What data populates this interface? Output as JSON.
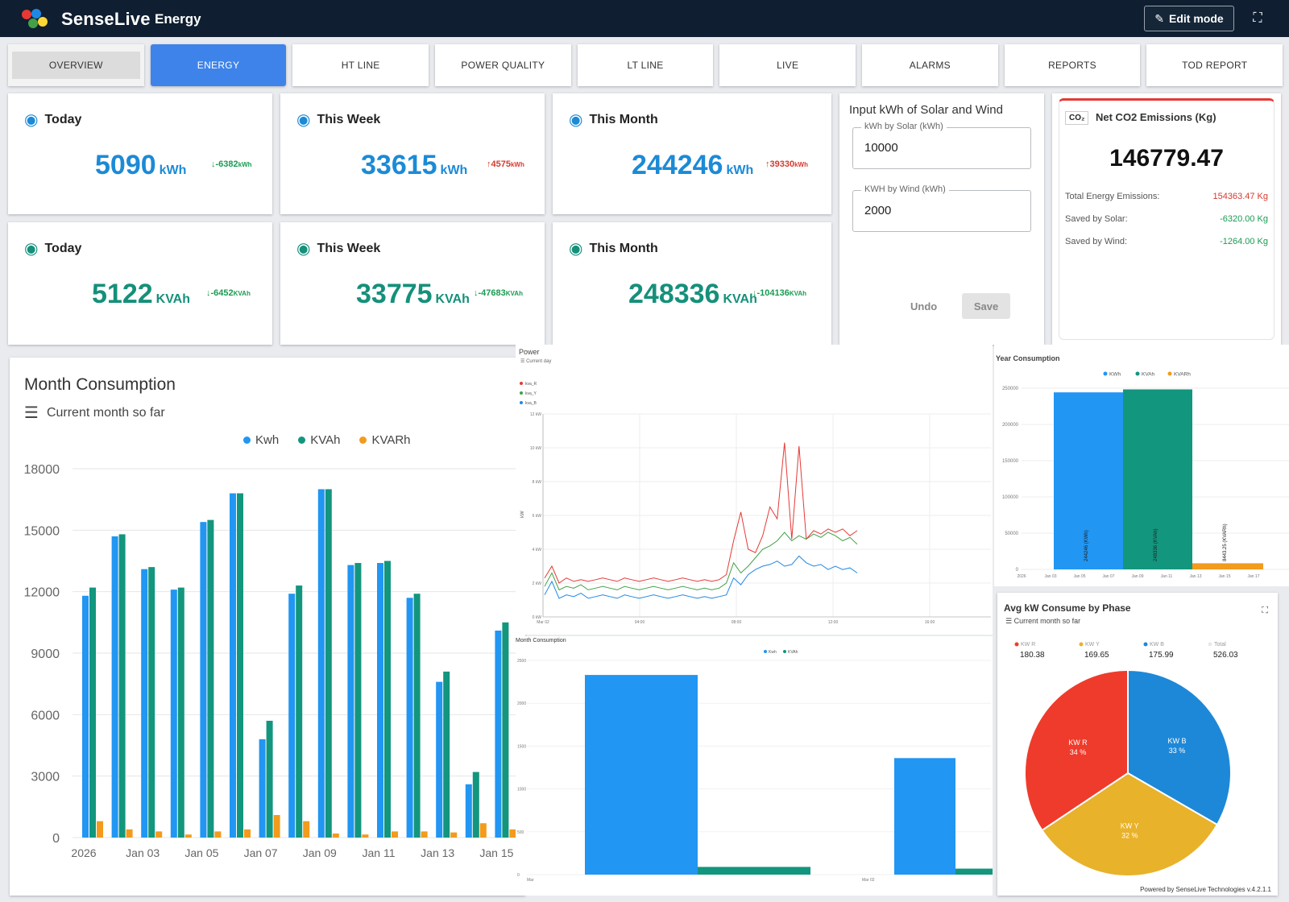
{
  "header": {
    "brand": "SenseLive",
    "page": "Energy",
    "edit_label": "Edit mode"
  },
  "tabs": [
    "OVERVIEW",
    "ENERGY",
    "HT LINE",
    "POWER QUALITY",
    "LT LINE",
    "LIVE",
    "ALARMS",
    "REPORTS",
    "TOD REPORT"
  ],
  "stats_kwh": [
    {
      "title": "Today",
      "value": "5090",
      "unit": "kWh",
      "delta": "-6382",
      "delta_unit": "kWh",
      "dir": "down"
    },
    {
      "title": "This Week",
      "value": "33615",
      "unit": "kWh",
      "delta": "4575",
      "delta_unit": "kWh",
      "dir": "up"
    },
    {
      "title": "This Month",
      "value": "244246",
      "unit": "kWh",
      "delta": "39330",
      "delta_unit": "kWh",
      "dir": "up"
    }
  ],
  "stats_kvah": [
    {
      "title": "Today",
      "value": "5122",
      "unit": "KVAh",
      "delta": "-6452",
      "delta_unit": "KVAh",
      "dir": "down"
    },
    {
      "title": "This Week",
      "value": "33775",
      "unit": "KVAh",
      "delta": "-47683",
      "delta_unit": "KVAh",
      "dir": "down"
    },
    {
      "title": "This Month",
      "value": "248336",
      "unit": "KVAh",
      "delta": "-104136",
      "delta_unit": "KVAh",
      "dir": "down"
    }
  ],
  "input_card": {
    "title": "Input kWh of Solar and Wind",
    "solar_label": "kWh by Solar (kWh)",
    "solar_value": "10000",
    "wind_label": "KWH by Wind (kWh)",
    "wind_value": "2000",
    "undo": "Undo",
    "save": "Save"
  },
  "co2": {
    "badge": "CO₂",
    "title": "Net CO2 Emissions (Kg)",
    "value": "146779.47",
    "rows": [
      {
        "label": "Total Energy Emissions:",
        "value": "154363.47 Kg",
        "color": "#d63a2f"
      },
      {
        "label": "Saved by Solar:",
        "value": "-6320.00 Kg",
        "color": "#1a9b51"
      },
      {
        "label": "Saved by Wind:",
        "value": "-1264.00 Kg",
        "color": "#1a9b51"
      }
    ]
  },
  "colors": {
    "kwh": "#2196f3",
    "kvah": "#13967e",
    "kvarh": "#f29b1d",
    "phase_r": "#ef3b2c",
    "phase_y": "#e8b22a",
    "phase_b": "#1e88d8"
  },
  "chart_data": [
    {
      "id": "month",
      "type": "bar",
      "title": "Month Consumption",
      "subtitle": "Current month so far",
      "legend": [
        "Kwh",
        "KVAh",
        "KVARh"
      ],
      "ylim": [
        0,
        18000
      ],
      "yticks": [
        0,
        3000,
        6000,
        9000,
        12000,
        15000,
        18000
      ],
      "xtick_labels": [
        "2026",
        "Jan 03",
        "Jan 05",
        "Jan 07",
        "Jan 09",
        "Jan 11",
        "Jan 13",
        "Jan 15"
      ],
      "series": [
        {
          "name": "Kwh",
          "values": [
            11800,
            14700,
            13100,
            12100,
            15400,
            16800,
            4800,
            11900,
            17000,
            13300,
            13400,
            11700,
            7600,
            2600,
            10100
          ]
        },
        {
          "name": "KVAh",
          "values": [
            12200,
            14800,
            13200,
            12200,
            15500,
            16800,
            5700,
            12300,
            17000,
            13400,
            13500,
            11900,
            8100,
            3200,
            10500
          ]
        },
        {
          "name": "KVARh",
          "values": [
            800,
            400,
            300,
            150,
            300,
            400,
            1100,
            800,
            200,
            150,
            300,
            300,
            250,
            700,
            400
          ]
        }
      ]
    },
    {
      "id": "power",
      "type": "line",
      "title": "Power",
      "subtitle": "Current day",
      "legend": [
        "kva_R",
        "kva_Y",
        "kva_B"
      ],
      "ylabel": "kW",
      "ylim": [
        0,
        12
      ],
      "yticks": [
        "0 kW",
        "2 kW",
        "4 kW",
        "6 kW",
        "8 kW",
        "10 kW",
        "12 kW"
      ],
      "xtick_labels": [
        "Mar 02",
        "04:00",
        "08:00",
        "12:00",
        "16:00"
      ],
      "series": [
        {
          "name": "kva_R",
          "values": [
            2.3,
            3.0,
            2.0,
            2.3,
            2.1,
            2.2,
            2.1,
            2.2,
            2.3,
            2.2,
            2.1,
            2.3,
            2.2,
            2.1,
            2.2,
            2.3,
            2.2,
            2.1,
            2.2,
            2.3,
            2.2,
            2.1,
            2.2,
            2.1,
            2.2,
            2.5,
            4.5,
            6.2,
            4.0,
            3.8,
            4.8,
            6.5,
            5.8,
            10.3,
            4.6,
            10.1,
            4.6,
            5.1,
            4.9,
            5.2,
            5.0,
            5.2,
            4.8,
            5.1
          ]
        },
        {
          "name": "kva_Y",
          "values": [
            1.8,
            2.6,
            1.6,
            1.8,
            1.7,
            1.9,
            1.6,
            1.7,
            1.8,
            1.7,
            1.6,
            1.8,
            1.7,
            1.6,
            1.7,
            1.8,
            1.7,
            1.6,
            1.7,
            1.8,
            1.7,
            1.6,
            1.7,
            1.6,
            1.7,
            2.0,
            3.2,
            2.6,
            3.0,
            3.5,
            4.0,
            4.2,
            4.5,
            5.0,
            4.5,
            4.8,
            4.6,
            4.9,
            4.7,
            5.0,
            4.8,
            4.5,
            4.7,
            4.3
          ]
        },
        {
          "name": "kva_B",
          "values": [
            1.3,
            2.1,
            1.1,
            1.3,
            1.2,
            1.4,
            1.1,
            1.2,
            1.3,
            1.2,
            1.1,
            1.3,
            1.2,
            1.1,
            1.2,
            1.3,
            1.2,
            1.1,
            1.2,
            1.3,
            1.2,
            1.1,
            1.2,
            1.1,
            1.2,
            1.3,
            2.3,
            1.9,
            2.5,
            2.8,
            3.0,
            3.1,
            3.3,
            3.0,
            3.1,
            3.6,
            3.2,
            3.0,
            3.1,
            2.8,
            3.0,
            2.8,
            2.9,
            2.6
          ]
        }
      ]
    },
    {
      "id": "year",
      "type": "bar",
      "title": "Year Consumption",
      "legend": [
        "KWh",
        "KVAh",
        "KVARh"
      ],
      "ylim": [
        0,
        250000
      ],
      "yticks": [
        "0",
        "50000",
        "100000",
        "150000",
        "200000",
        "250000"
      ],
      "xtick_labels": [
        "2026",
        "Jan 03",
        "Jan 05",
        "Jan 07",
        "Jan 09",
        "Jan 11",
        "Jan 13",
        "Jan 15",
        "Jan 17"
      ],
      "series": [
        {
          "name": "KWh",
          "values": [
            244246
          ],
          "label": "244246 (KWh)"
        },
        {
          "name": "KVAh",
          "values": [
            248336
          ],
          "label": "248336 (KVAh)"
        },
        {
          "name": "KVARh",
          "values": [
            8443.25
          ],
          "label": "8443.25 (KVARh)"
        }
      ]
    },
    {
      "id": "month2",
      "type": "bar",
      "title": "Month Consumption",
      "legend": [
        "Kwh",
        "KVAh"
      ],
      "xtick_labels": [
        "Mar",
        "Mar 02"
      ],
      "ylim": [
        0,
        2500
      ],
      "yticks": [
        "0",
        "500",
        "1000",
        "1500",
        "2000",
        "2500"
      ],
      "series": [
        {
          "name": "Kwh",
          "values": [
            2330,
            1360
          ]
        },
        {
          "name": "KVAh",
          "values": [
            90,
            70
          ]
        }
      ]
    },
    {
      "id": "phase",
      "type": "pie",
      "title": "Avg kW Consume by Phase",
      "subtitle": "Current month so far",
      "summary": [
        {
          "label": "KW R",
          "value": "180.38",
          "color": "#ef3b2c"
        },
        {
          "label": "KW Y",
          "value": "169.65",
          "color": "#e8b22a"
        },
        {
          "label": "KW B",
          "value": "175.99",
          "color": "#1e88d8"
        },
        {
          "label": "Total",
          "value": "526.03",
          "color": "#e8e8e8"
        }
      ],
      "slices": [
        {
          "label": "KW R",
          "value": 34,
          "pct": "34 %"
        },
        {
          "label": "KW Y",
          "value": 32,
          "pct": "32 %"
        },
        {
          "label": "KW B",
          "value": 33,
          "pct": "33 %"
        }
      ]
    }
  ],
  "footer": {
    "text": "Powered by SenseLive Technologies v.4.2.1.1"
  }
}
